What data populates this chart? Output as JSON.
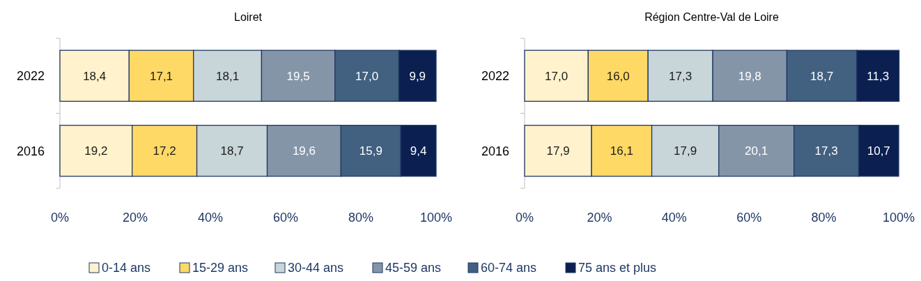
{
  "chart_data": [
    {
      "type": "bar",
      "title": "Loiret",
      "orientation": "horizontal",
      "stacked": true,
      "legend": "bottom",
      "categories": [
        "2022",
        "2016"
      ],
      "xlim": [
        0,
        100
      ],
      "xticks": [
        {
          "value": 0,
          "label": "0%"
        },
        {
          "value": 20,
          "label": "20%"
        },
        {
          "value": 40,
          "label": "40%"
        },
        {
          "value": 60,
          "label": "60%"
        },
        {
          "value": 80,
          "label": "80%"
        },
        {
          "value": 100,
          "label": "100%"
        }
      ],
      "series": [
        {
          "name": "0-14 ans",
          "color": "#fff2cc",
          "values": [
            18.4,
            19.2
          ],
          "value_labels": [
            "18,4",
            "19,2"
          ]
        },
        {
          "name": "15-29 ans",
          "color": "#ffd966",
          "values": [
            17.1,
            17.2
          ],
          "value_labels": [
            "17,1",
            "17,2"
          ]
        },
        {
          "name": "30-44 ans",
          "color": "#c8d5d9",
          "values": [
            18.1,
            18.7
          ],
          "value_labels": [
            "18,1",
            "18,7"
          ]
        },
        {
          "name": "45-59 ans",
          "color": "#8495a8",
          "values": [
            19.5,
            19.6
          ],
          "value_labels": [
            "19,5",
            "19,6"
          ]
        },
        {
          "name": "60-74 ans",
          "color": "#42607f",
          "values": [
            17.0,
            15.9
          ],
          "value_labels": [
            "17,0",
            "15,9"
          ]
        },
        {
          "name": "75 ans et plus",
          "color": "#0b2050",
          "values": [
            9.9,
            9.4
          ],
          "value_labels": [
            "9,9",
            "9,4"
          ]
        }
      ]
    },
    {
      "type": "bar",
      "title": "Région Centre-Val de Loire",
      "orientation": "horizontal",
      "stacked": true,
      "categories": [
        "2022",
        "2016"
      ],
      "xlim": [
        0,
        100
      ],
      "xticks": [
        {
          "value": 0,
          "label": "0%"
        },
        {
          "value": 20,
          "label": "20%"
        },
        {
          "value": 40,
          "label": "40%"
        },
        {
          "value": 60,
          "label": "60%"
        },
        {
          "value": 80,
          "label": "80%"
        },
        {
          "value": 100,
          "label": "100%"
        }
      ],
      "series": [
        {
          "color": "#fff2cc",
          "values": [
            17.0,
            17.9
          ],
          "value_labels": [
            "17,0",
            "17,9"
          ]
        },
        {
          "color": "#ffd966",
          "values": [
            16.0,
            16.1
          ],
          "value_labels": [
            "16,0",
            "16,1"
          ]
        },
        {
          "color": "#c8d5d9",
          "values": [
            17.3,
            17.9
          ],
          "value_labels": [
            "17,3",
            "17,9"
          ]
        },
        {
          "color": "#8495a8",
          "values": [
            19.8,
            20.1
          ],
          "value_labels": [
            "19,8",
            "20,1"
          ]
        },
        {
          "color": "#42607f",
          "values": [
            18.7,
            17.3
          ],
          "value_labels": [
            "18,7",
            "17,3"
          ]
        },
        {
          "color": "#0b2050",
          "values": [
            11.3,
            10.7
          ],
          "value_labels": [
            "11,3",
            "10,7"
          ]
        }
      ]
    }
  ]
}
